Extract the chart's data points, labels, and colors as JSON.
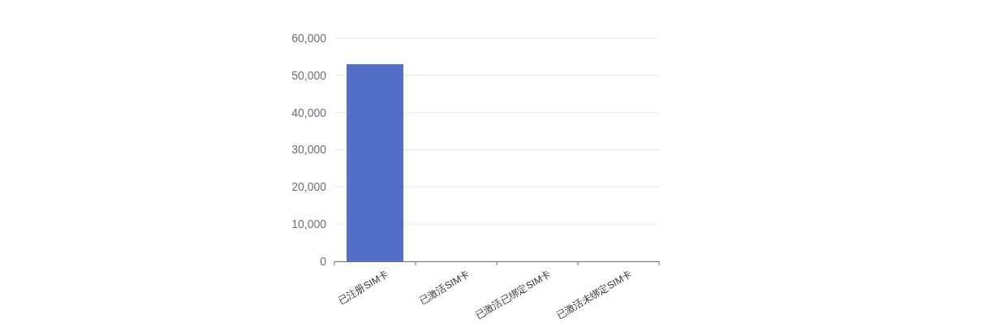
{
  "chart_data": {
    "type": "bar",
    "categories": [
      "已注册SIM卡",
      "已激活SIM卡",
      "已激活已绑定SIM卡",
      "已激活未绑定SIM卡"
    ],
    "values": [
      53000,
      0,
      0,
      0
    ],
    "color": "#5470c6",
    "ylim": [
      0,
      60000
    ],
    "yticks": [
      {
        "value": 0,
        "label": "0"
      },
      {
        "value": 10000,
        "label": "10,000"
      },
      {
        "value": 20000,
        "label": "20,000"
      },
      {
        "value": 30000,
        "label": "30,000"
      },
      {
        "value": 40000,
        "label": "40,000"
      },
      {
        "value": 50000,
        "label": "50,000"
      },
      {
        "value": 60000,
        "label": "60,000"
      }
    ],
    "grid": "y"
  }
}
